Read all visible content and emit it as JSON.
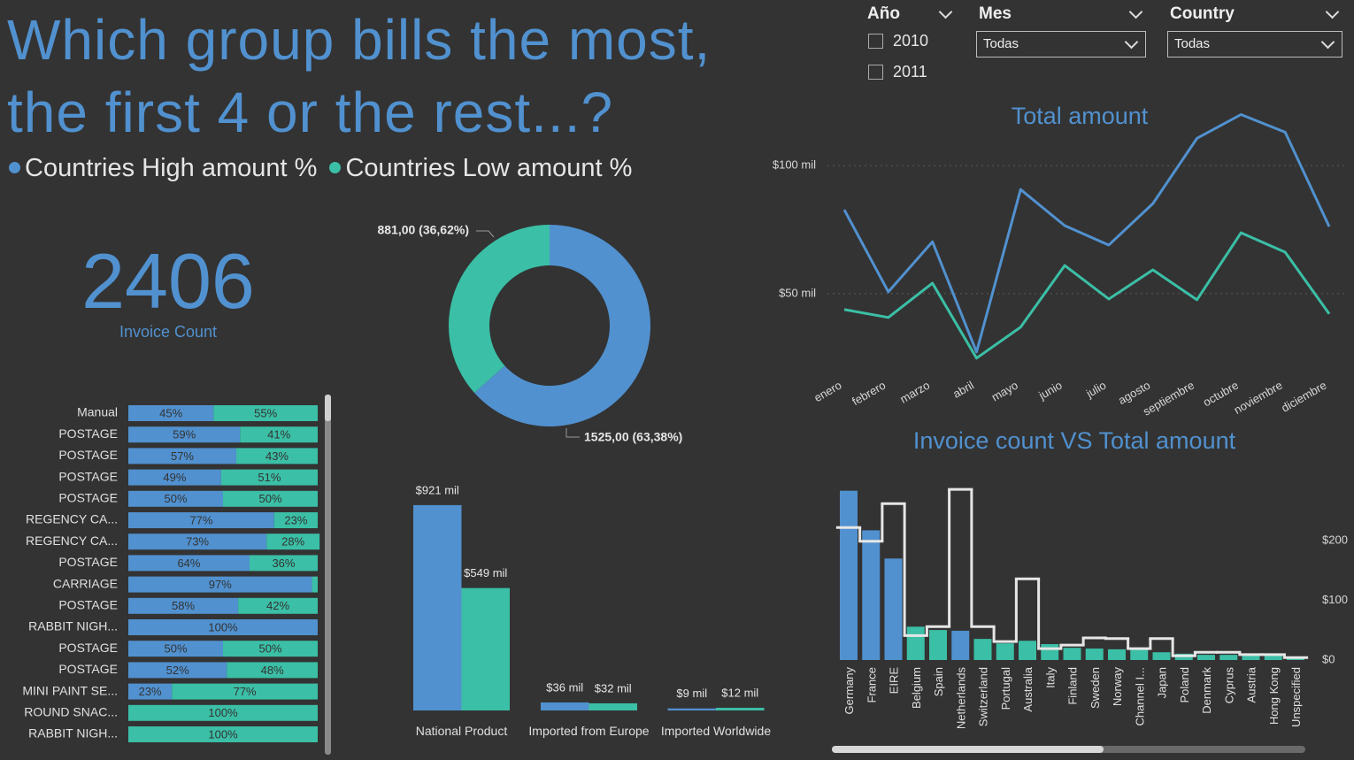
{
  "header": {
    "title": "Which group bills the most, the first 4 or the rest...?"
  },
  "filters": {
    "year": {
      "label": "Año",
      "options": [
        "2010",
        "2011"
      ]
    },
    "month": {
      "label": "Mes",
      "selected": "Todas"
    },
    "country": {
      "label": "Country",
      "selected": "Todas"
    }
  },
  "kpi": {
    "value": 2406,
    "label": "Invoice Count"
  },
  "chart_data": [
    {
      "type": "donut",
      "categories": [
        "Countries High amount %",
        "Countries Low amount %"
      ],
      "values": [
        1525,
        881
      ],
      "value_labels": [
        "1525,00 (63,38%)",
        "881,00 (36,62%)"
      ],
      "colors": [
        "#5191cf",
        "#3bbfa6"
      ]
    },
    {
      "type": "line",
      "title": "Total amount",
      "x": [
        "enero",
        "febrero",
        "marzo",
        "abril",
        "mayo",
        "junio",
        "julio",
        "agosto",
        "septiembre",
        "octubre",
        "noviembre",
        "diciembre"
      ],
      "series": [
        {
          "color": "#5191cf",
          "values": [
            82800,
            50700,
            70300,
            27200,
            90700,
            76600,
            69000,
            85200,
            110700,
            120000,
            113100,
            76200
          ]
        },
        {
          "color": "#3bbfa6",
          "values": [
            43800,
            40700,
            54100,
            24800,
            36900,
            61000,
            47900,
            59300,
            47600,
            73800,
            66200,
            42100
          ]
        }
      ],
      "ylim": [
        23000,
        125000
      ],
      "yticks": [
        {
          "value": 50000,
          "label": "$50 mil"
        },
        {
          "value": 100000,
          "label": "$100 mil"
        }
      ],
      "grid": true
    },
    {
      "type": "bar",
      "orientation": "horizontal",
      "stacked": true,
      "categories": [
        "Manual",
        "POSTAGE",
        "POSTAGE",
        "POSTAGE",
        "POSTAGE",
        "REGENCY CA...",
        "REGENCY CA...",
        "POSTAGE",
        "CARRIAGE",
        "POSTAGE",
        "RABBIT NIGH...",
        "POSTAGE",
        "POSTAGE",
        "MINI PAINT SE...",
        "ROUND SNAC...",
        "RABBIT NIGH..."
      ],
      "series": [
        {
          "color": "#5191cf",
          "values": [
            45,
            59,
            57,
            49,
            50,
            77,
            73,
            64,
            97,
            58,
            100,
            50,
            52,
            23,
            0,
            0
          ],
          "value_labels": [
            "45%",
            "59%",
            "57%",
            "49%",
            "50%",
            "77%",
            "73%",
            "64%",
            "97%",
            "58%",
            "100%",
            "50%",
            "52%",
            "23%",
            null,
            null
          ]
        },
        {
          "color": "#3bbfa6",
          "values": [
            55,
            41,
            43,
            51,
            50,
            23,
            28,
            36,
            3,
            42,
            0,
            50,
            48,
            77,
            100,
            100
          ],
          "value_labels": [
            "55%",
            "41%",
            "43%",
            "51%",
            "50%",
            "23%",
            "28%",
            "36%",
            null,
            "42%",
            null,
            "50%",
            "48%",
            "77%",
            "100%",
            "100%"
          ]
        }
      ],
      "xlim": [
        0,
        100
      ]
    },
    {
      "type": "bar",
      "orientation": "vertical",
      "categories": [
        "National Product",
        "Imported from Europe",
        "Imported Worldwide"
      ],
      "series": [
        {
          "color": "#5191cf",
          "values": [
            921000,
            36000,
            9000
          ],
          "value_labels": [
            "$921 mil",
            "$36 mil",
            "$9 mil"
          ]
        },
        {
          "color": "#3bbfa6",
          "values": [
            549000,
            32000,
            12000
          ],
          "value_labels": [
            "$549 mil",
            "$32 mil",
            "$12 mil"
          ]
        }
      ],
      "ylim": [
        0,
        1000000
      ]
    },
    {
      "type": "combo",
      "title": "Invoice count VS Total amount",
      "categories": [
        "Germany",
        "France",
        "EIRE",
        "Belgium",
        "Spain",
        "Netherlands",
        "Switzerland",
        "Portugal",
        "Australia",
        "Italy",
        "Finland",
        "Sweden",
        "Norway",
        "Channel I...",
        "Japan",
        "Poland",
        "Denmark",
        "Cyprus",
        "Austria",
        "Hong Kong",
        "Unspecified"
      ],
      "series": [
        {
          "type": "bar",
          "values": [
            457,
            350,
            274,
            90,
            81,
            79,
            57,
            45,
            52,
            43,
            33,
            31,
            29,
            29,
            21,
            17,
            14,
            14,
            12,
            12,
            7
          ],
          "colors": [
            "#5191cf",
            "#5191cf",
            "#5191cf",
            "#3bbfa6",
            "#3bbfa6",
            "#5191cf",
            "#3bbfa6",
            "#3bbfa6",
            "#3bbfa6",
            "#3bbfa6",
            "#3bbfa6",
            "#3bbfa6",
            "#3bbfa6",
            "#3bbfa6",
            "#3bbfa6",
            "#3bbfa6",
            "#3bbfa6",
            "#3bbfa6",
            "#3bbfa6",
            "#3bbfa6",
            "#3bbfa6"
          ]
        },
        {
          "type": "step",
          "axis": "y2",
          "color": "#e6e6e6",
          "values": [
            222000,
            199000,
            262000,
            41000,
            56000,
            286000,
            56000,
            31000,
            136000,
            19000,
            25000,
            37000,
            36000,
            19000,
            36000,
            7000,
            13000,
            13000,
            9000,
            9000,
            4000
          ]
        }
      ],
      "ylim": [
        0,
        480
      ],
      "y2lim": [
        0,
        298000
      ],
      "y2ticks": [
        {
          "value": 0,
          "label": "$0"
        },
        {
          "value": 100000,
          "label": "$100"
        },
        {
          "value": 200000,
          "label": "$200"
        }
      ]
    }
  ]
}
